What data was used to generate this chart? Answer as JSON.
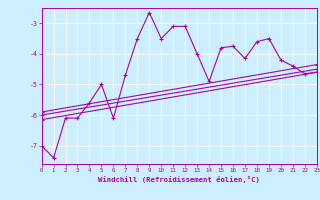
{
  "xlabel": "Windchill (Refroidissement éolien,°C)",
  "xlim": [
    0,
    23
  ],
  "ylim": [
    -7.6,
    -2.5
  ],
  "yticks": [
    -7,
    -6,
    -5,
    -4,
    -3
  ],
  "xticks": [
    0,
    1,
    2,
    3,
    4,
    5,
    6,
    7,
    8,
    9,
    10,
    11,
    12,
    13,
    14,
    15,
    16,
    17,
    18,
    19,
    20,
    21,
    22,
    23
  ],
  "bg_color": "#cceeff",
  "line_color": "#aa00aa",
  "lines": [
    {
      "x": [
        0,
        1,
        2,
        3,
        4,
        5,
        6,
        7,
        8,
        9,
        10,
        11,
        12,
        13,
        14,
        15,
        16,
        17,
        18,
        19,
        20,
        21,
        22,
        23
      ],
      "y": [
        -7.0,
        -7.4,
        -6.1,
        -6.1,
        -5.6,
        -5.0,
        -6.1,
        -4.7,
        -3.5,
        -2.65,
        -3.5,
        -3.1,
        -3.1,
        -4.0,
        -4.9,
        -3.8,
        -3.75,
        -4.15,
        -3.6,
        -3.5,
        -4.2,
        -4.4,
        -4.65,
        -4.6
      ]
    },
    {
      "x": [
        0,
        23
      ],
      "y": [
        -6.15,
        -4.6
      ]
    },
    {
      "x": [
        0,
        23
      ],
      "y": [
        -6.0,
        -4.5
      ]
    },
    {
      "x": [
        0,
        23
      ],
      "y": [
        -5.9,
        -4.35
      ]
    }
  ]
}
